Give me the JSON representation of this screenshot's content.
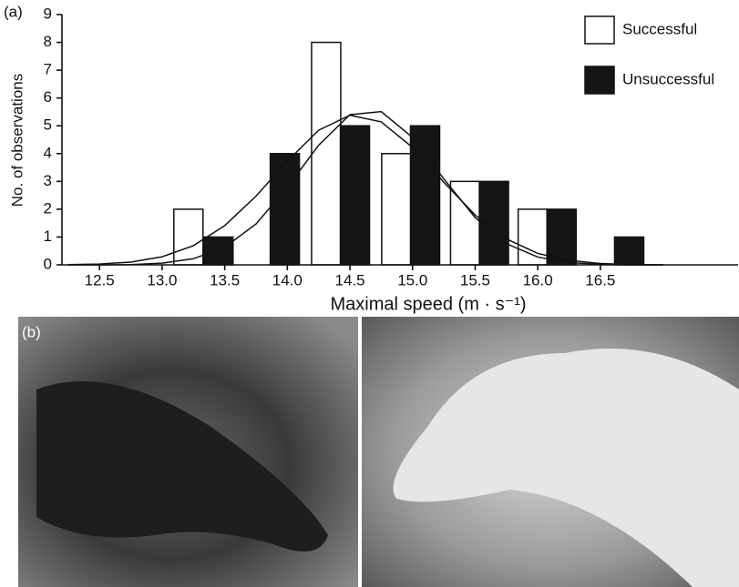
{
  "chart_data": {
    "type": "bar",
    "panel_label": "(a)",
    "x_label": "Maximal speed (m · s⁻¹)",
    "y_label": "No. of observations",
    "xlim": [
      12.2,
      17.6
    ],
    "ylim": [
      0,
      9
    ],
    "xticks": [
      12.5,
      {
        "value": 13.0,
        "label": "13.0"
      },
      13.5,
      {
        "value": 14.0,
        "label": "14.0"
      },
      14.5,
      {
        "value": 15.0,
        "label": "15.0"
      },
      15.5,
      {
        "value": 16.0,
        "label": "16.0"
      },
      16.5
    ],
    "yticks": [
      0,
      1,
      2,
      3,
      4,
      5,
      6,
      7,
      8,
      9
    ],
    "legend": "upper right",
    "series": [
      {
        "name": "Successful",
        "color": "#ffffff",
        "x": [
          13.21,
          14.31,
          14.87,
          15.42,
          15.96
        ],
        "values": [
          2,
          8,
          4,
          3,
          2
        ]
      },
      {
        "name": "Unsuccessful",
        "color": "#151515",
        "x": [
          13.45,
          13.98,
          14.54,
          15.1,
          15.65,
          16.19,
          16.73
        ],
        "values": [
          1,
          4,
          5,
          5,
          3,
          2,
          1
        ]
      }
    ],
    "fit_curves": {
      "color": "#111111",
      "x": [
        12.25,
        12.5,
        12.75,
        13.0,
        13.25,
        13.5,
        13.75,
        14.0,
        14.25,
        14.5,
        14.75,
        15.0,
        15.25,
        15.5,
        15.75,
        16.0,
        16.25,
        16.5,
        16.75,
        17.0
      ],
      "series": [
        {
          "values": [
            0.01,
            0.03,
            0.1,
            0.29,
            0.69,
            1.41,
            2.47,
            3.73,
            4.84,
            5.38,
            5.14,
            4.22,
            2.97,
            1.79,
            0.93,
            0.41,
            0.16,
            0.05,
            0.01,
            0.0
          ]
        },
        {
          "values": [
            0.0,
            0.0,
            0.01,
            0.06,
            0.22,
            0.63,
            1.47,
            2.79,
            4.3,
            5.4,
            5.51,
            4.58,
            3.09,
            1.7,
            0.76,
            0.28,
            0.08,
            0.02,
            0.0,
            0.0
          ]
        }
      ]
    }
  },
  "photo_panel": {
    "label": "(b)"
  }
}
